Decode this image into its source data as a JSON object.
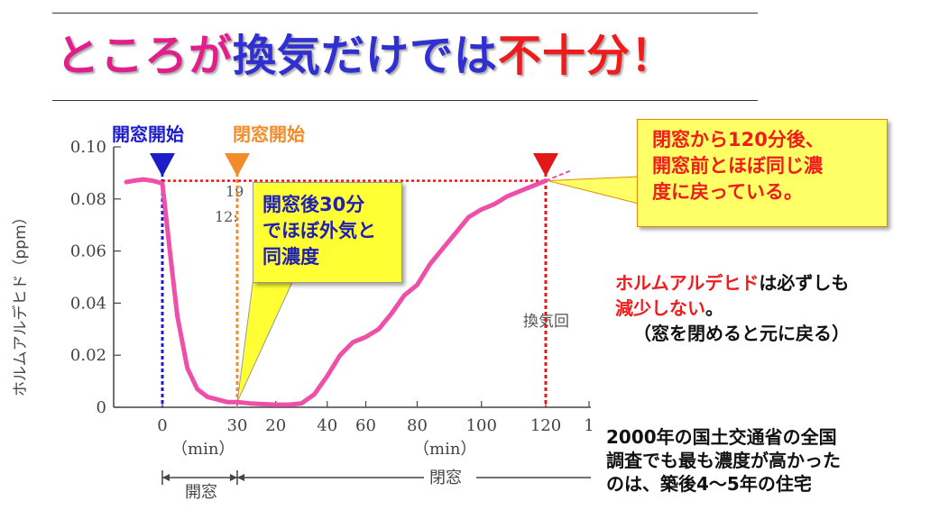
{
  "slide": {
    "title_part1": "ところが換気だけでは",
    "title_part2": "不十分！"
  },
  "callouts": {
    "thirty_min": [
      "開窓後30分",
      "でほぼ外気と",
      "同濃度"
    ],
    "one_twenty_min": [
      "閉窓から120分後、",
      "開窓前とほぼ同じ濃",
      "度に戻っている。"
    ]
  },
  "notes": {
    "formaldehyde_red": "ホルムアルデヒド",
    "formaldehyde_rest": "は必ずしも",
    "line2_red": "減少しない",
    "line2_rest": "。",
    "line3": "（窓を閉めると元に戻る）",
    "survey": [
      "2000年の国土交通省の全国",
      "調査でも最も濃度が高かった",
      "のは、築後4～5年の住宅"
    ]
  },
  "colors": {
    "curve": "#ee4fa8",
    "open_marker": "#1c1cc8",
    "close_marker": "#f08c2a",
    "return_marker": "#e01818",
    "grid_text": "#444444"
  },
  "chart_data": {
    "type": "line",
    "ylabel": "ホルムアルデヒド（ppm）",
    "yticks": [
      "0",
      "0.02",
      "0.04",
      "0.06",
      "0.08",
      "0.10"
    ],
    "ylim": [
      0,
      0.1
    ],
    "xticks": [
      "0",
      "30",
      "20",
      "40",
      "60",
      "80",
      "100",
      "120",
      "1"
    ],
    "x_unit_left": "（min）",
    "x_unit_right": "（min）",
    "phases": {
      "open": "開窓",
      "close": "閉窓"
    },
    "markers": {
      "open_start": "開窓開始",
      "close_start": "閉窓開始"
    },
    "faint_label": "換気回",
    "faint_time": [
      "19",
      "12:"
    ],
    "series": [
      {
        "open_x": [
          -15,
          -12,
          -8,
          -4,
          0,
          3,
          6,
          10,
          14,
          18,
          22,
          26,
          30
        ],
        "open_y": [
          0.0865,
          0.087,
          0.0875,
          0.087,
          0.086,
          0.06,
          0.035,
          0.015,
          0.007,
          0.004,
          0.003,
          0.002,
          0.002
        ],
        "closed_x": [
          0,
          5,
          10,
          15,
          20,
          25,
          30,
          35,
          40,
          45,
          50,
          55,
          60,
          65,
          70,
          75,
          80,
          85,
          90,
          95,
          100,
          105,
          110,
          115,
          120,
          125,
          130
        ],
        "closed_y": [
          0.002,
          0.0015,
          0.0012,
          0.001,
          0.001,
          0.0015,
          0.005,
          0.012,
          0.02,
          0.025,
          0.027,
          0.03,
          0.036,
          0.043,
          0.047,
          0.055,
          0.061,
          0.067,
          0.073,
          0.076,
          0.078,
          0.081,
          0.083,
          0.085,
          0.087,
          0.089,
          0.091
        ]
      }
    ],
    "reference_level": 0.087
  }
}
